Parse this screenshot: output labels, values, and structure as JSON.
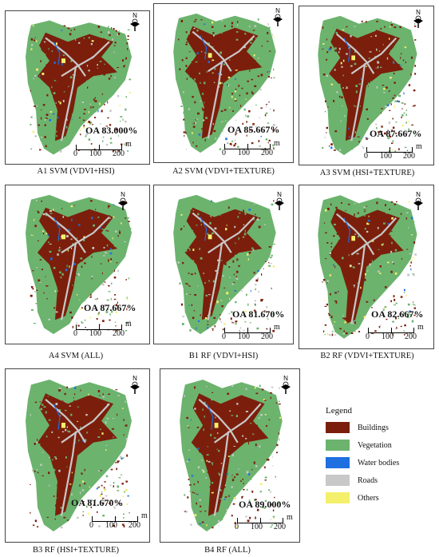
{
  "panels": [
    {
      "id": "A1",
      "caption": "A1 SVM (VDVI+HSI)",
      "oa": "OA 83.000%"
    },
    {
      "id": "A2",
      "caption": "A2 SVM (VDVI+TEXTURE)",
      "oa": "OA 85.667%"
    },
    {
      "id": "A3",
      "caption": "A3 SVM (HSI+TEXTURE)",
      "oa": "OA 87.667%"
    },
    {
      "id": "A4",
      "caption": "A4 SVM (ALL)",
      "oa": "OA 87.667%"
    },
    {
      "id": "B1",
      "caption": "B1 RF (VDVI+HSI)",
      "oa": "OA 81.670%"
    },
    {
      "id": "B2",
      "caption": "B2 RF (VDVI+TEXTURE)",
      "oa": "OA 82.667%"
    },
    {
      "id": "B3",
      "caption": "B3 RF (HSI+TEXTURE)",
      "oa": "OA 81.670%"
    },
    {
      "id": "B4",
      "caption": "B4 RF (ALL)",
      "oa": "OA 89.000%"
    }
  ],
  "scale_bar": {
    "t0": "0",
    "t1": "100",
    "t2": "200",
    "unit": "m"
  },
  "north_label": "N",
  "legend": {
    "title": "Legend",
    "items": [
      {
        "label": "Buildings",
        "color": "#7b1f0c"
      },
      {
        "label": "Vegetation",
        "color": "#6cb36e"
      },
      {
        "label": "Water bodies",
        "color": "#1f6fe0"
      },
      {
        "label": "Roads",
        "color": "#c8c8c8"
      },
      {
        "label": "Others",
        "color": "#f4f06c"
      }
    ]
  }
}
